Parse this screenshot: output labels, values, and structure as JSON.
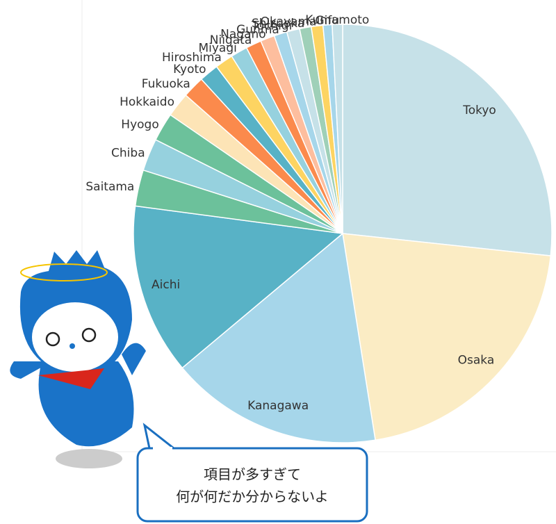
{
  "chart_data": {
    "type": "pie",
    "categories": [
      "Tokyo",
      "Osaka",
      "Kanagawa",
      "Aichi",
      "Saitama",
      "Chiba",
      "Hyogo",
      "Hokkaido",
      "Fukuoka",
      "Kyoto",
      "Hiroshima",
      "Miyagi",
      "Niigata",
      "Nagano",
      "Gunma",
      "Tochigi",
      "Shizuoka",
      "Okayama",
      "Gifu",
      "Kumamoto"
    ],
    "values": [
      26.7,
      20.8,
      16.4,
      13.2,
      2.8,
      2.5,
      2.2,
      1.9,
      1.7,
      1.5,
      1.4,
      1.3,
      1.2,
      1.1,
      1.0,
      1.0,
      0.9,
      0.9,
      0.7,
      0.8
    ],
    "colors": [
      "#c6e1e8",
      "#fbecc4",
      "#a6d6ea",
      "#58b2c6",
      "#6cc19b",
      "#96d1de",
      "#6cc19b",
      "#fde4b6",
      "#fb8a4c",
      "#58b2c6",
      "#fdd462",
      "#96d1de",
      "#fb8a4c",
      "#fdbe9e",
      "#a6d6ea",
      "#c6e1e8",
      "#9fd0b8",
      "#fdd462",
      "#a6d6ea",
      "#c6e1e8"
    ]
  },
  "speech_bubble": {
    "lines": [
      "項目が多すぎて",
      "何が何だか分からないよ"
    ]
  }
}
